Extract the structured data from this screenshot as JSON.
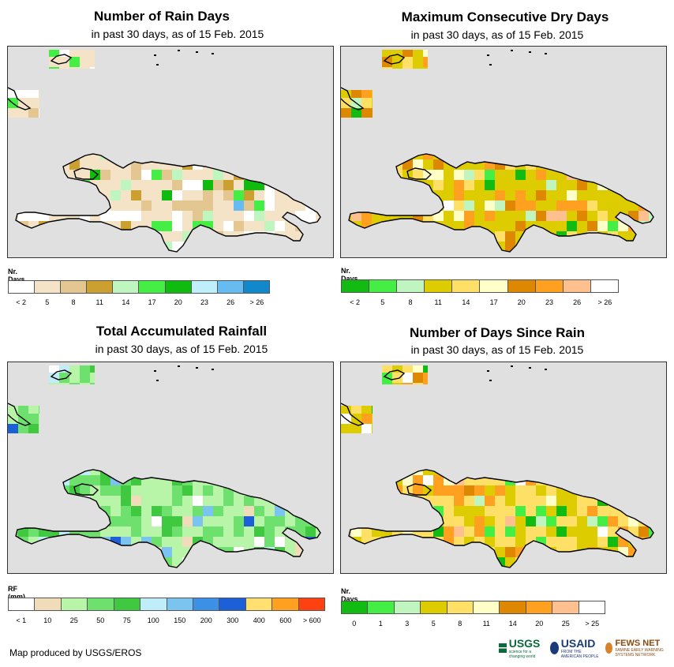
{
  "panels": [
    {
      "title": "Number of Rain Days",
      "subtitle": "in past 30 days, as of 15 Feb. 2015",
      "legend_title": "Nr. Days",
      "legend_colors": [
        "#ffffff",
        "#f5e3c8",
        "#e3c690",
        "#cca030",
        "#bff5bf",
        "#44ee44",
        "#10bb10",
        "#bfeffa",
        "#66bbf0",
        "#1188cc"
      ],
      "legend_labels": [
        "< 2",
        "5",
        "8",
        "11",
        "14",
        "17",
        "20",
        "23",
        "26",
        "> 26"
      ],
      "map_palette": [
        "#ffffff",
        "#f5e3c8",
        "#e3c690",
        "#cca030",
        "#bff5bf",
        "#44ee44",
        "#10bb10",
        "#bfeffa",
        "#66bbf0",
        "#1188cc"
      ],
      "map_weights": [
        3,
        10,
        2,
        1,
        1,
        1,
        0.3,
        0.2,
        0.2,
        0.1
      ]
    },
    {
      "title": "Maximum Consecutive Dry Days",
      "subtitle": "in past 30 days, as of 15 Feb. 2015",
      "legend_title": "Nr. Days",
      "legend_colors": [
        "#11bb11",
        "#44ee44",
        "#c0f5c0",
        "#dccc00",
        "#ffe066",
        "#ffffc8",
        "#dd8800",
        "#ffa020",
        "#ffc090",
        "#ffffff"
      ],
      "legend_labels": [
        "< 2",
        "5",
        "8",
        "11",
        "14",
        "17",
        "20",
        "23",
        "26",
        "> 26"
      ],
      "map_palette": [
        "#11bb11",
        "#44ee44",
        "#c0f5c0",
        "#dccc00",
        "#ffe066",
        "#ffffc8",
        "#dd8800",
        "#ffa020",
        "#ffc090",
        "#ffffff"
      ],
      "map_weights": [
        0.3,
        0.4,
        0.6,
        9,
        2,
        1,
        1.5,
        2,
        0.4,
        0.2
      ]
    },
    {
      "title": "Total Accumulated Rainfall",
      "subtitle": "in past 30 days, as of 15 Feb. 2015",
      "legend_title": "RF (mm)",
      "legend_colors": [
        "#ffffff",
        "#f0dcb8",
        "#b8f5a8",
        "#6ee06e",
        "#40c840",
        "#bfeefa",
        "#7cc4f0",
        "#3c90e6",
        "#1c5fd6",
        "#ffe070",
        "#ffa020",
        "#ff4010"
      ],
      "legend_labels": [
        "< 1",
        "10",
        "25",
        "50",
        "75",
        "100",
        "150",
        "200",
        "300",
        "400",
        "600",
        "> 600"
      ],
      "map_palette": [
        "#ffffff",
        "#f0dcb8",
        "#b8f5a8",
        "#6ee06e",
        "#40c840",
        "#bfeefa",
        "#7cc4f0",
        "#3c90e6",
        "#1c5fd6"
      ],
      "map_weights": [
        1,
        1,
        7,
        4,
        1.5,
        0.4,
        0.4,
        0.3,
        0.2
      ]
    },
    {
      "title": "Number of Days Since Rain",
      "subtitle": "in past 30 days, as of 15 Feb. 2015",
      "legend_title": "Nr. Days",
      "legend_colors": [
        "#11bb11",
        "#44ee44",
        "#c0f5c0",
        "#dccc00",
        "#ffe066",
        "#ffffc8",
        "#dd8800",
        "#ffa020",
        "#ffc090",
        "#ffffff"
      ],
      "legend_labels": [
        "0",
        "1",
        "3",
        "5",
        "8",
        "11",
        "14",
        "20",
        "25",
        "> 25"
      ],
      "map_palette": [
        "#11bb11",
        "#44ee44",
        "#c0f5c0",
        "#dccc00",
        "#ffe066",
        "#ffffc8",
        "#dd8800",
        "#ffa020",
        "#ffc090",
        "#ffffff"
      ],
      "map_weights": [
        0.6,
        0.8,
        0.5,
        5,
        6,
        1,
        0.5,
        3,
        0.2,
        0.5
      ]
    }
  ],
  "footer": "Map produced by USGS/EROS",
  "logos": {
    "usgs": "USGS",
    "usgs_tag": "science for a changing world",
    "usaid": "USAID",
    "usaid_tag": "FROM THE AMERICAN PEOPLE",
    "fews": "FEWS NET",
    "fews_tag": "FAMINE EARLY WARNING SYSTEMS NETWORK"
  }
}
